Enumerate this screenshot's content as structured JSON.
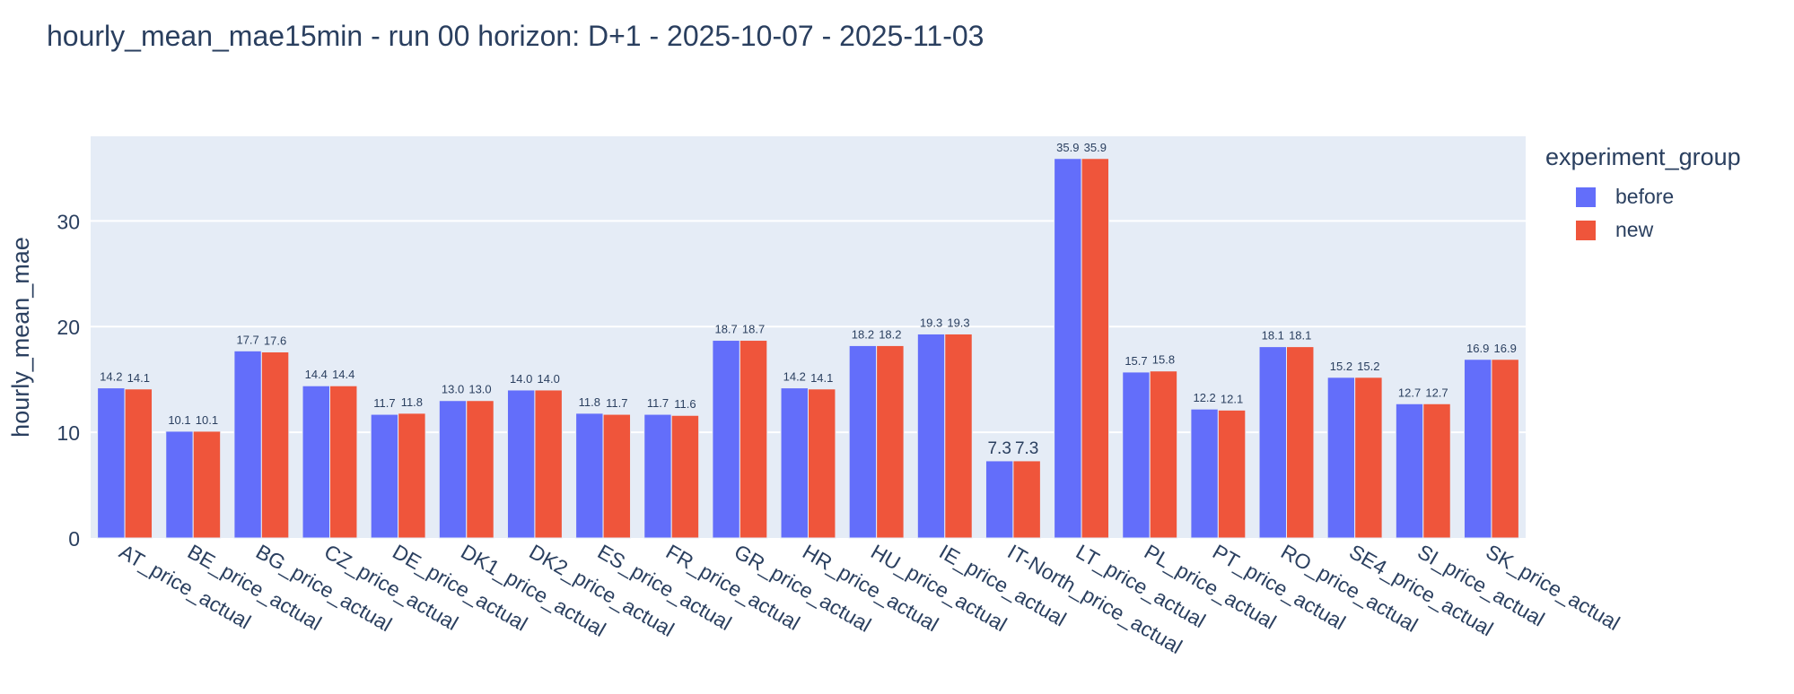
{
  "title": "hourly_mean_mae15min - run 00 horizon: D+1 - 2025-10-07 - 2025-11-03",
  "colors": {
    "before": "#636efa",
    "new": "#ef553b",
    "plot_bg": "#e5ecf6",
    "text": "#2a3f5f"
  },
  "legend": {
    "title": "experiment_group",
    "items": [
      {
        "label": "before",
        "color": "#636efa"
      },
      {
        "label": "new",
        "color": "#ef553b"
      }
    ]
  },
  "chart_data": {
    "type": "bar",
    "title": "hourly_mean_mae15min - run 00 horizon: D+1 - 2025-10-07 - 2025-11-03",
    "xlabel": "",
    "ylabel": "hourly_mean_mae",
    "ylim": [
      0,
      38
    ],
    "yticks": [
      0,
      10,
      20,
      30
    ],
    "grid": true,
    "legend_position": "top-right",
    "categories": [
      "AT_price_actual",
      "BE_price_actual",
      "BG_price_actual",
      "CZ_price_actual",
      "DE_price_actual",
      "DK1_price_actual",
      "DK2_price_actual",
      "ES_price_actual",
      "FR_price_actual",
      "GR_price_actual",
      "HR_price_actual",
      "HU_price_actual",
      "IE_price_actual",
      "IT-North_price_actual",
      "LT_price_actual",
      "PL_price_actual",
      "PT_price_actual",
      "RO_price_actual",
      "SE4_price_actual",
      "SI_price_actual",
      "SK_price_actual"
    ],
    "series": [
      {
        "name": "before",
        "color": "#636efa",
        "values": [
          14.2,
          10.1,
          17.7,
          14.4,
          11.7,
          13.0,
          14.0,
          11.8,
          11.7,
          18.7,
          14.2,
          18.2,
          19.3,
          7.3,
          35.9,
          15.7,
          12.2,
          18.1,
          15.2,
          12.7,
          16.9
        ]
      },
      {
        "name": "new",
        "color": "#ef553b",
        "values": [
          14.1,
          10.1,
          17.6,
          14.4,
          11.8,
          13.0,
          14.0,
          11.7,
          11.6,
          18.7,
          14.1,
          18.2,
          19.3,
          7.3,
          35.9,
          15.8,
          12.1,
          18.1,
          15.2,
          12.7,
          16.9
        ]
      }
    ]
  }
}
